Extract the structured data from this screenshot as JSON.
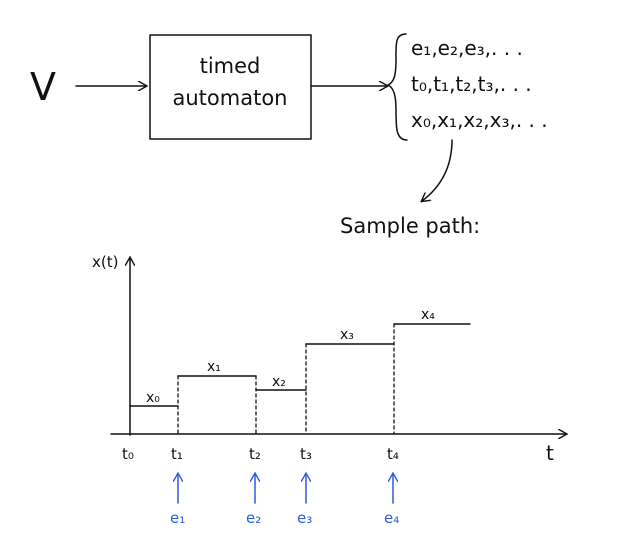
{
  "block": {
    "input_label": "V",
    "line1": "timed",
    "line2": "automaton"
  },
  "outputs": [
    "e₁,e₂,e₃,. . .",
    "t₀,t₁,t₂,t₃,. . .",
    "x₀,x₁,x₂,x₃,. . ."
  ],
  "sample_path_label": "Sample path:",
  "plot": {
    "y_axis_label": "x(t)",
    "x_axis_label": "t",
    "times": [
      "t₀",
      "t₁",
      "t₂",
      "t₃",
      "t₄"
    ],
    "states": [
      "x₀",
      "x₁",
      "x₂",
      "x₃",
      "x₄"
    ],
    "events": [
      "e₁",
      "e₂",
      "e₃",
      "e₄"
    ]
  },
  "colors": {
    "ink": "#111111",
    "event_arrows": "#2f5fe0"
  }
}
